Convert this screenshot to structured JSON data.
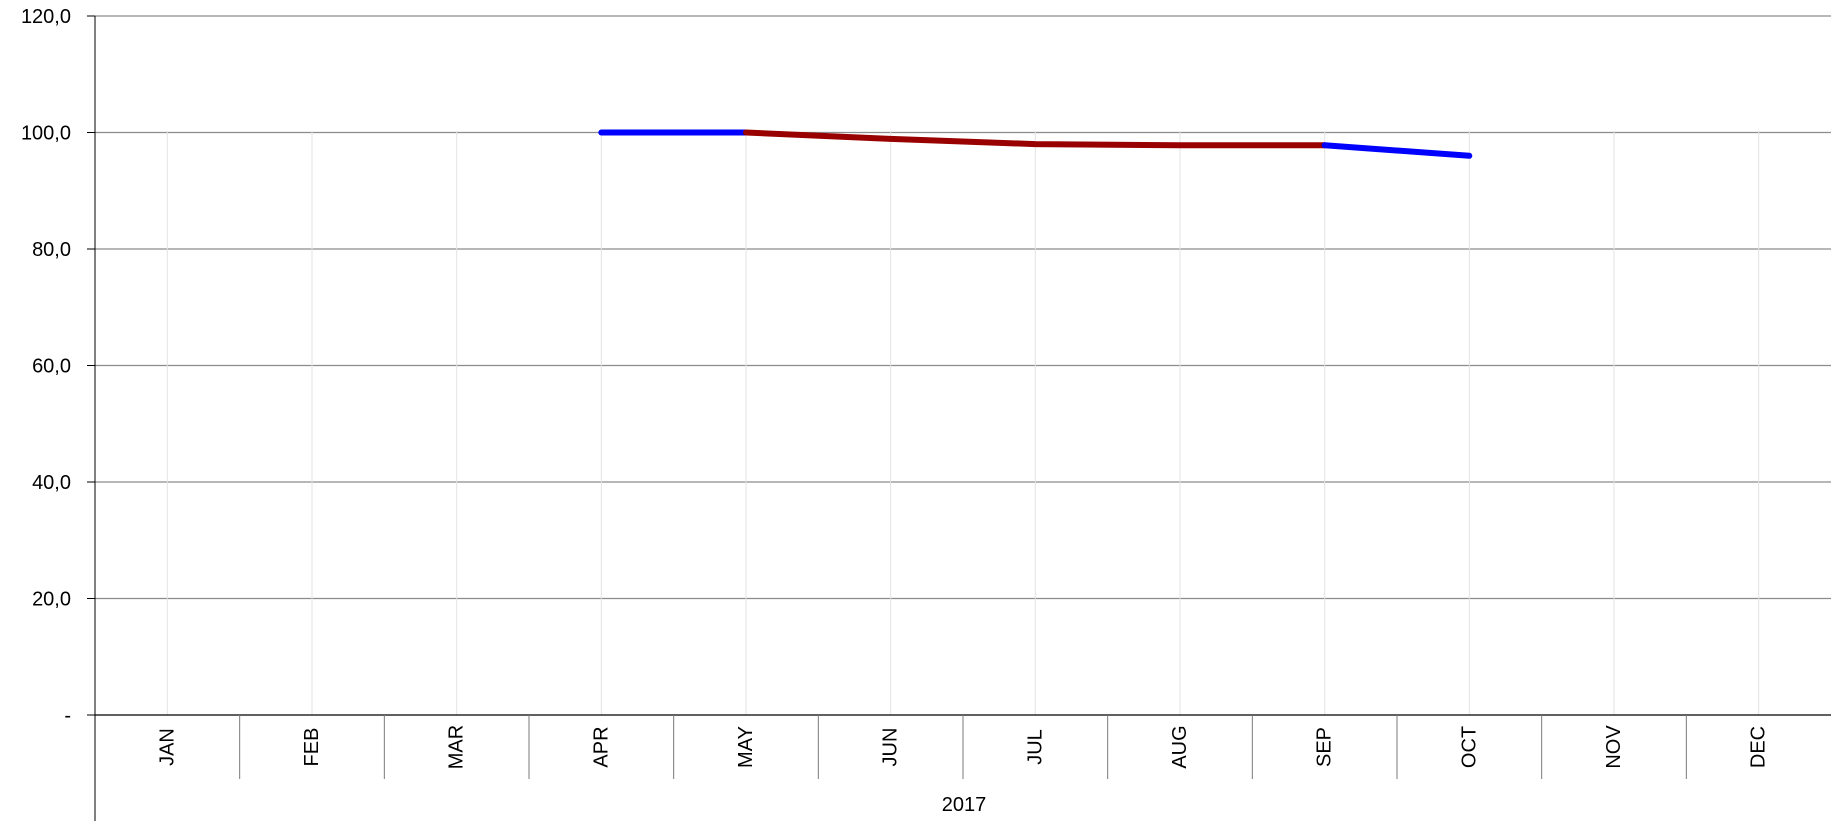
{
  "chart_data": {
    "type": "line",
    "title": "",
    "xlabel": "",
    "ylabel": "",
    "year_label": "2017",
    "categories": [
      "JAN",
      "FEB",
      "MAR",
      "APR",
      "MAY",
      "JUN",
      "JUL",
      "AUG",
      "SEP",
      "OCT",
      "NOV",
      "DEC"
    ],
    "ylim": [
      0,
      120
    ],
    "yticks": [
      0,
      20,
      40,
      60,
      80,
      100,
      120
    ],
    "ytick_labels": [
      "-",
      "20,0",
      "40,0",
      "60,0",
      "80,0",
      "100,0",
      "120,0"
    ],
    "grid": true,
    "segments": [
      {
        "color": "#0000ff",
        "x": [
          "APR",
          "MAY"
        ],
        "values": [
          100.0,
          100.0
        ]
      },
      {
        "color": "#990000",
        "x": [
          "MAY",
          "JUN",
          "JUL",
          "AUG",
          "SEP"
        ],
        "values": [
          100.0,
          98.9,
          98.0,
          97.8,
          97.8
        ]
      },
      {
        "color": "#0000ff",
        "x": [
          "SEP",
          "OCT"
        ],
        "values": [
          97.8,
          96.0
        ]
      }
    ]
  }
}
